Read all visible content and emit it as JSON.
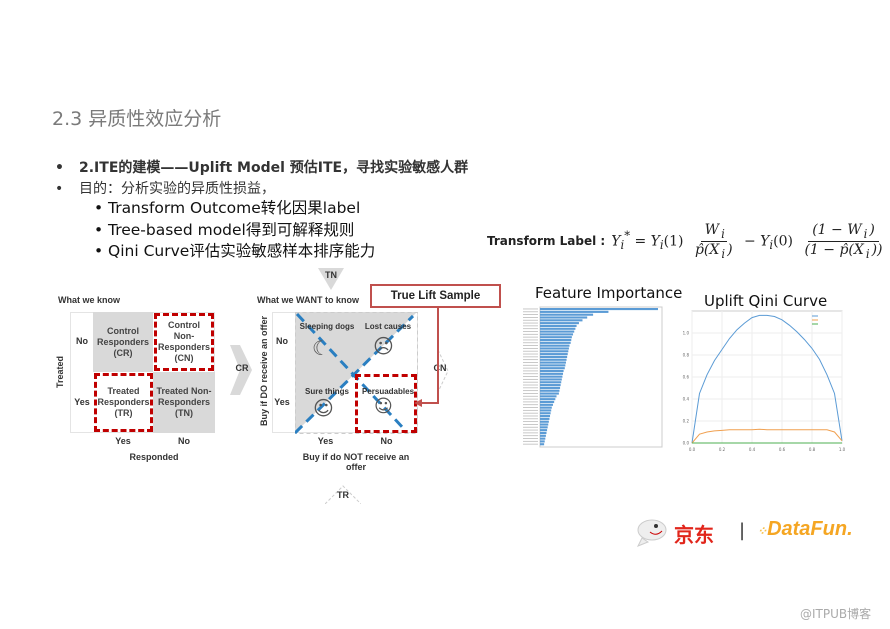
{
  "title": "2.3 异质性效应分析",
  "bullets": [
    {
      "text": "2.ITE的建模——Uplift Model 预估ITE，寻找实验敏感人群",
      "bold": true
    },
    {
      "text": "目的：分析实验的异质性损益，",
      "bold": false
    }
  ],
  "sub_bullets": [
    "Transform Outcome转化因果label",
    "Tree-based model得到可解释规则",
    "Qini Curve评估实验敏感样本排序能力"
  ],
  "formula": {
    "label": "Transform Label :",
    "lhs": "Y",
    "lhs_sub": "i",
    "lhs_sup": "*",
    "t1": "Y",
    "t1_sub": "i",
    "t1_arg": "(1)",
    "f1_num": "W",
    "f1_num_sub": "i",
    "f1_den": "p̂(X",
    "f1_den_sub": "i",
    "f1_den_end": ")",
    "minus": "−",
    "t2": "Y",
    "t2_sub": "i",
    "t2_arg": "(0)",
    "f2_num": "(1 − W",
    "f2_num_sub": "i",
    "f2_num_end": ")",
    "f2_den": "(1 − p̂(X",
    "f2_den_sub": "i",
    "f2_den_end": "))"
  },
  "know": {
    "title": "What we know",
    "row_axis": "Treated",
    "col_axis": "Responded",
    "rows": [
      "No",
      "Yes"
    ],
    "cols": [
      "Yes",
      "No"
    ],
    "cells": [
      "Control Responders (CR)",
      "Control Non-Responders (CN)",
      "Treated Responders (TR)",
      "Treated Non-Responders (TN)"
    ]
  },
  "want": {
    "title": "What we WANT to know",
    "row_axis": "Buy if DO receive an offer",
    "col_axis": "Buy if do NOT receive an offer",
    "rows": [
      "No",
      "Yes"
    ],
    "cols": [
      "Yes",
      "No"
    ],
    "cells": [
      "Sleeping dogs",
      "Lost causes",
      "Sure things",
      "Persuadables"
    ],
    "cell_colors": [
      "#c06060",
      "#aaaaaa",
      "#aaaaaa",
      "#2ea02e"
    ],
    "markers": {
      "top": "TN",
      "left": "CR",
      "right": "CN",
      "bottom": "TR"
    },
    "callout": "True Lift Sample"
  },
  "charts": {
    "feature_importance": {
      "title": "Feature Importance",
      "type": "bar",
      "orientation": "horizontal",
      "color": "#5b9bd5",
      "values": [
        1.0,
        0.58,
        0.45,
        0.4,
        0.36,
        0.33,
        0.31,
        0.3,
        0.29,
        0.28,
        0.27,
        0.265,
        0.26,
        0.25,
        0.245,
        0.24,
        0.235,
        0.23,
        0.225,
        0.22,
        0.215,
        0.21,
        0.2,
        0.195,
        0.19,
        0.185,
        0.18,
        0.175,
        0.17,
        0.165,
        0.16,
        0.14,
        0.13,
        0.12,
        0.11,
        0.1,
        0.095,
        0.09,
        0.085,
        0.08,
        0.075,
        0.07,
        0.065,
        0.06,
        0.055,
        0.05,
        0.045,
        0.04,
        0.035
      ]
    },
    "qini": {
      "title": "Uplift Qini Curve",
      "type": "line",
      "xlim": [
        0,
        1
      ],
      "ylim": [
        0,
        1.2
      ],
      "xticks": [
        "0.0",
        "0.2",
        "0.4",
        "0.6",
        "0.8",
        "1.0"
      ],
      "yticks": [
        "0.0",
        "0.2",
        "0.4",
        "0.6",
        "0.8",
        "1.0"
      ],
      "grid": true,
      "legend": "top-right",
      "x": [
        0,
        0.05,
        0.1,
        0.15,
        0.2,
        0.25,
        0.3,
        0.35,
        0.4,
        0.45,
        0.5,
        0.55,
        0.6,
        0.65,
        0.7,
        0.75,
        0.8,
        0.85,
        0.9,
        0.95,
        1.0
      ],
      "series": [
        {
          "color": "#5b9bd5",
          "values": [
            0,
            0.45,
            0.62,
            0.75,
            0.85,
            0.95,
            1.03,
            1.09,
            1.14,
            1.16,
            1.16,
            1.15,
            1.12,
            1.07,
            1.01,
            0.94,
            0.86,
            0.76,
            0.62,
            0.45,
            0.02
          ]
        },
        {
          "color": "#f0a050",
          "values": [
            0,
            0.08,
            0.1,
            0.11,
            0.115,
            0.12,
            0.12,
            0.12,
            0.12,
            0.125,
            0.12,
            0.12,
            0.12,
            0.12,
            0.12,
            0.12,
            0.12,
            0.12,
            0.12,
            0.1,
            0.02
          ]
        },
        {
          "color": "#4caf50",
          "values": [
            0,
            0,
            0,
            0,
            0,
            0,
            0,
            0,
            0,
            0,
            0,
            0,
            0,
            0,
            0,
            0,
            0,
            0,
            0,
            0,
            0
          ]
        }
      ]
    }
  },
  "logo": {
    "jd": "京东",
    "sep": "|",
    "datafun": "DataFun."
  },
  "watermark": "@ITPUB博客"
}
